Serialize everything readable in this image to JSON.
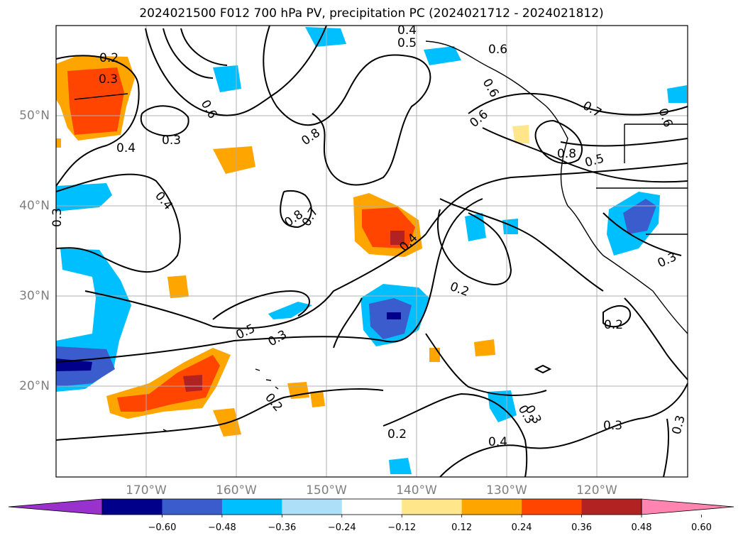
{
  "title": "2024021500 F012 700 hPa PV, precipitation PC (2024021712 - 2024021812)",
  "lat_labels": [
    "50°N",
    "40°N",
    "30°N",
    "20°N"
  ],
  "lon_labels": [
    "170°W",
    "160°W",
    "150°W",
    "140°W",
    "130°W",
    "120°W"
  ],
  "colorbar": {
    "ticks": [
      "−0.60",
      "−0.48",
      "−0.36",
      "−0.24",
      "−0.12",
      "0.12",
      "0.24",
      "0.36",
      "0.48",
      "0.60"
    ],
    "colors": [
      "#9932CC",
      "#00008B",
      "#3A5CCC",
      "#00BFFF",
      "#ADE0F8",
      "#FFFFFF",
      "#FFE68A",
      "#FFA500",
      "#FF4500",
      "#B22222",
      "#FF85B0"
    ]
  },
  "contour_labels": [
    "0.2",
    "0.3",
    "0.4",
    "0.4",
    "0.6",
    "0.8",
    "0.7",
    "0.8",
    "0.3",
    "0.4",
    "0.5",
    "0.6",
    "0.4",
    "0.3",
    "0.5",
    "0.3",
    "0.2",
    "0.2",
    "0.4",
    "0.3",
    "0.2",
    "0.3",
    "0.3",
    "0.3",
    "0.6",
    "0.7",
    "0.8",
    "0.5",
    "0.6",
    "0.2",
    "0.3",
    "0.6"
  ]
}
